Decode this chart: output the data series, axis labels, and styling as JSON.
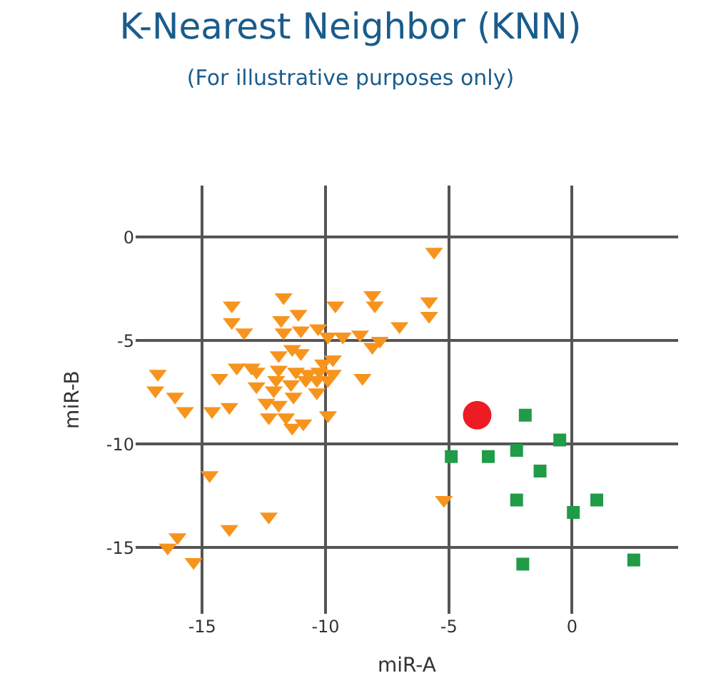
{
  "chart_data": {
    "type": "scatter",
    "title": "K-Nearest Neighbor (KNN)",
    "subtitle": "(For illustrative purposes only)",
    "xlabel": "miR-A",
    "ylabel": "miR-B",
    "xlim": [
      -17.7,
      4.3
    ],
    "ylim": [
      -18.2,
      2.5
    ],
    "xticks": [
      -15,
      -10,
      -5,
      0
    ],
    "yticks": [
      -15,
      -10,
      -5,
      0
    ],
    "grid": true,
    "series": [
      {
        "color": "#f7941d",
        "marker": "triangle",
        "x": [
          -5.6,
          -5.8,
          -5.8,
          -5.2,
          -7.0,
          -13.8,
          -13.8,
          -13.3,
          -11.7,
          -11.8,
          -11.1,
          -9.6,
          -11.7,
          -11.0,
          -10.3,
          -9.9,
          -9.3,
          -8.6,
          -8.1,
          -8.0,
          -7.8,
          -8.1,
          -8.5,
          -11.35,
          -11.0,
          -11.9,
          -9.7,
          -13.6,
          -13.0,
          -12.8,
          -14.3,
          -16.8,
          -16.9,
          -16.1,
          -15.7,
          -14.6,
          -13.9,
          -12.8,
          -11.9,
          -11.2,
          -10.7,
          -10.25,
          -9.7,
          -10.1,
          -12.0,
          -11.4,
          -10.8,
          -10.35,
          -9.9,
          -12.1,
          -11.3,
          -10.35,
          -12.4,
          -11.9,
          -12.3,
          -11.6,
          -11.35,
          -10.9,
          -9.9,
          -14.7,
          -12.3,
          -13.9,
          -16.0,
          -16.4,
          -15.35
        ],
        "values": [
          -0.7,
          -3.1,
          -3.8,
          -12.7,
          -4.3,
          -3.3,
          -4.1,
          -4.6,
          -2.9,
          -4.0,
          -3.7,
          -3.3,
          -4.6,
          -4.5,
          -4.4,
          -4.8,
          -4.8,
          -4.7,
          -2.8,
          -3.3,
          -5.0,
          -5.3,
          -6.8,
          -5.4,
          -5.6,
          -5.7,
          -5.9,
          -6.3,
          -6.3,
          -6.5,
          -6.8,
          -6.6,
          -7.4,
          -7.7,
          -8.4,
          -8.4,
          -8.2,
          -7.2,
          -6.4,
          -6.5,
          -6.6,
          -6.5,
          -6.6,
          -6.1,
          -6.9,
          -7.1,
          -6.9,
          -6.9,
          -6.9,
          -7.4,
          -7.7,
          -7.5,
          -8.0,
          -8.1,
          -8.7,
          -8.7,
          -9.2,
          -9.0,
          -8.6,
          -11.5,
          -13.5,
          -14.1,
          -14.5,
          -15.0,
          -15.7
        ]
      },
      {
        "color": "#209b48",
        "marker": "square",
        "x": [
          -1.9,
          -0.5,
          -4.9,
          -3.4,
          -2.25,
          -1.3,
          -2.25,
          0.05,
          1.0,
          -2.0,
          2.5
        ],
        "values": [
          -8.6,
          -9.8,
          -10.6,
          -10.6,
          -10.3,
          -11.3,
          -12.7,
          -13.3,
          -12.7,
          -15.8,
          -15.6
        ]
      },
      {
        "color": "#ed1c24",
        "marker": "circle",
        "x": [
          -3.85
        ],
        "values": [
          -8.6
        ]
      }
    ]
  }
}
